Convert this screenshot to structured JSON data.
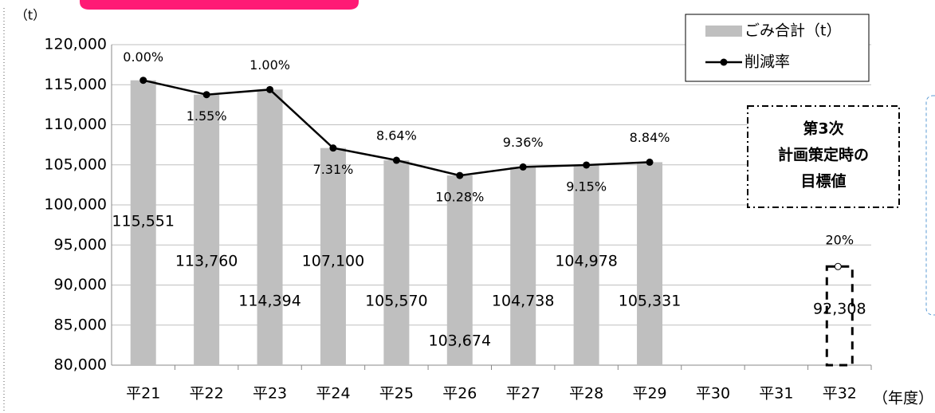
{
  "chart_data": {
    "type": "bar",
    "y_unit": "（t）",
    "x_unit": "（年度）",
    "categories": [
      "平21",
      "平22",
      "平23",
      "平24",
      "平25",
      "平26",
      "平27",
      "平28",
      "平29",
      "平30",
      "平31",
      "平32"
    ],
    "series": [
      {
        "name": "ごみ合計（t）",
        "color": "#bfbfbf",
        "type": "bar",
        "values": [
          115551,
          113760,
          114394,
          107100,
          105570,
          103674,
          104738,
          104978,
          105331,
          null,
          null,
          null
        ],
        "value_labels": [
          "115,551",
          "113,760",
          "114,394",
          "107,100",
          "105,570",
          "103,674",
          "104,738",
          "104,978",
          "105,331",
          null,
          null,
          null
        ]
      },
      {
        "name": "削減率",
        "color": "#000000",
        "type": "line",
        "values": [
          0,
          1.55,
          1.0,
          7.31,
          8.64,
          10.28,
          9.36,
          9.15,
          8.84,
          null,
          null,
          null
        ],
        "value_labels": [
          "0.00%",
          "1.55%",
          "1.00%",
          "7.31%",
          "8.64%",
          "10.28%",
          "9.36%",
          "9.15%",
          "8.84%",
          null,
          null,
          null
        ]
      }
    ],
    "target": {
      "value": 92308,
      "label": "92,308",
      "rate": 20,
      "rate_label": "20%"
    },
    "annotation": [
      "第3次",
      "計画策定時の",
      "目標値"
    ],
    "ylim": [
      80000,
      120000
    ],
    "yticks": [
      {
        "value": 80000,
        "label": "80,000"
      },
      {
        "value": 85000,
        "label": "85,000"
      },
      {
        "value": 90000,
        "label": "90,000"
      },
      {
        "value": 95000,
        "label": "95,000"
      },
      {
        "value": 100000,
        "label": "100,000"
      },
      {
        "value": 105000,
        "label": "105,000"
      },
      {
        "value": 110000,
        "label": "110,000"
      },
      {
        "value": 115000,
        "label": "115,000"
      },
      {
        "value": 120000,
        "label": "120,000"
      }
    ],
    "grid": true
  }
}
